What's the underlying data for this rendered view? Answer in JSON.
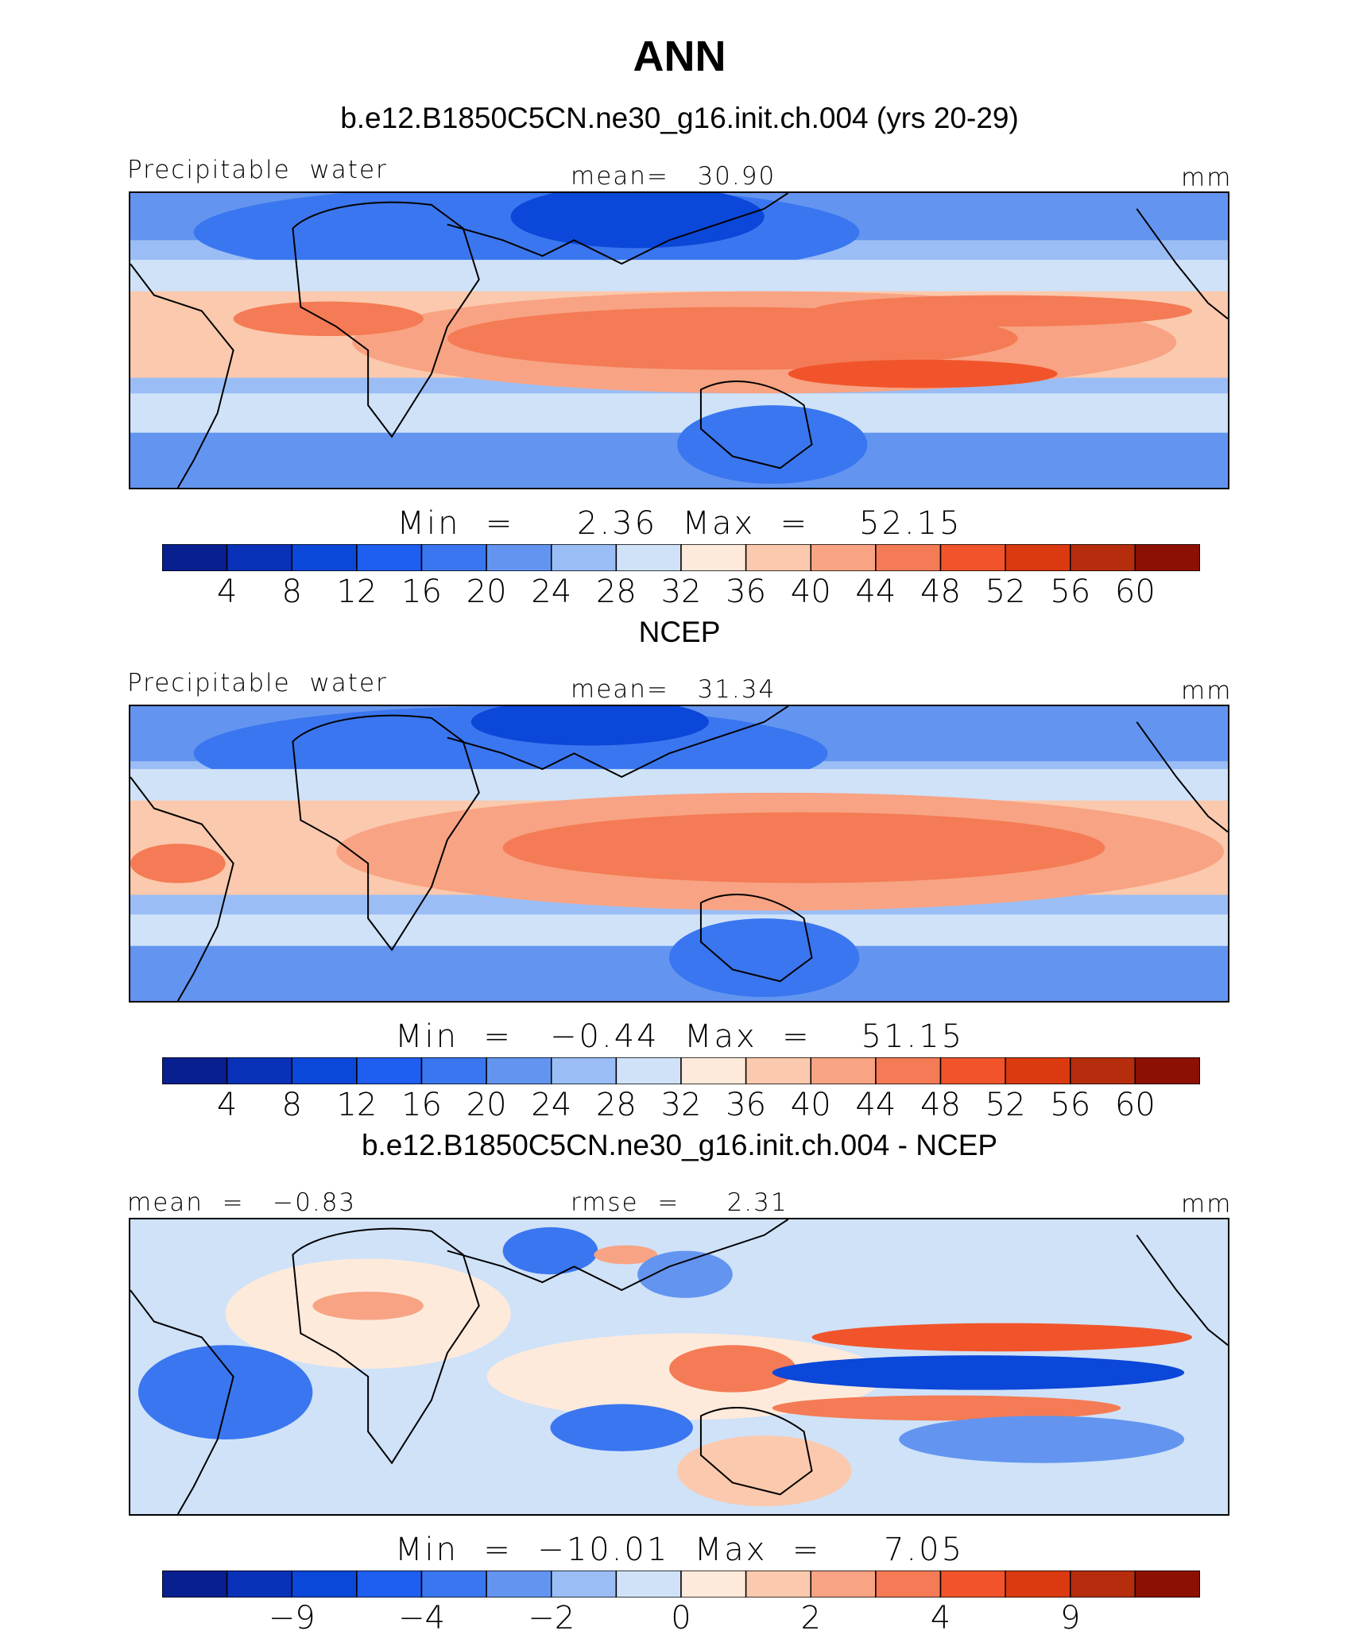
{
  "title": "ANN",
  "colors": {
    "scale": [
      "#081f8f",
      "#0a32b8",
      "#0b47d8",
      "#1e5ef0",
      "#3a76ef",
      "#6395f0",
      "#9abdf5",
      "#cfe2f8",
      "#feeadb",
      "#fbc9ad",
      "#f8a383",
      "#f47b55",
      "#f1542b",
      "#db3a10",
      "#b52d0c",
      "#8c1003"
    ],
    "coast": "#000000"
  },
  "panels": [
    {
      "title": "b.e12.B1850C5CN.ne30_g16.init.ch.004 (yrs 20-29)",
      "left_text": "Precipitable  water",
      "center_text": "mean=   30.90",
      "units": "mm",
      "minmax": "Min  =     2.36  Max  =    52.15",
      "ticks": [
        "4",
        "8",
        "12",
        "16",
        "20",
        "24",
        "28",
        "32",
        "36",
        "40",
        "44",
        "48",
        "52",
        "56",
        "60"
      ]
    },
    {
      "title": "NCEP",
      "left_text": "Precipitable  water",
      "center_text": "mean=   31.34",
      "units": "mm",
      "minmax": "Min  =   −0.44  Max  =    51.15",
      "ticks": [
        "4",
        "8",
        "12",
        "16",
        "20",
        "24",
        "28",
        "32",
        "36",
        "40",
        "44",
        "48",
        "52",
        "56",
        "60"
      ]
    },
    {
      "title": "b.e12.B1850C5CN.ne30_g16.init.ch.004 - NCEP",
      "left_text": "mean  =   −0.83",
      "center_text": "rmse  =     2.31",
      "units": "mm",
      "minmax": "Min  =  −10.01  Max  =     7.05",
      "ticks": [
        "−9",
        "−4",
        "−2",
        "0",
        "2",
        "4",
        "9"
      ]
    }
  ]
}
